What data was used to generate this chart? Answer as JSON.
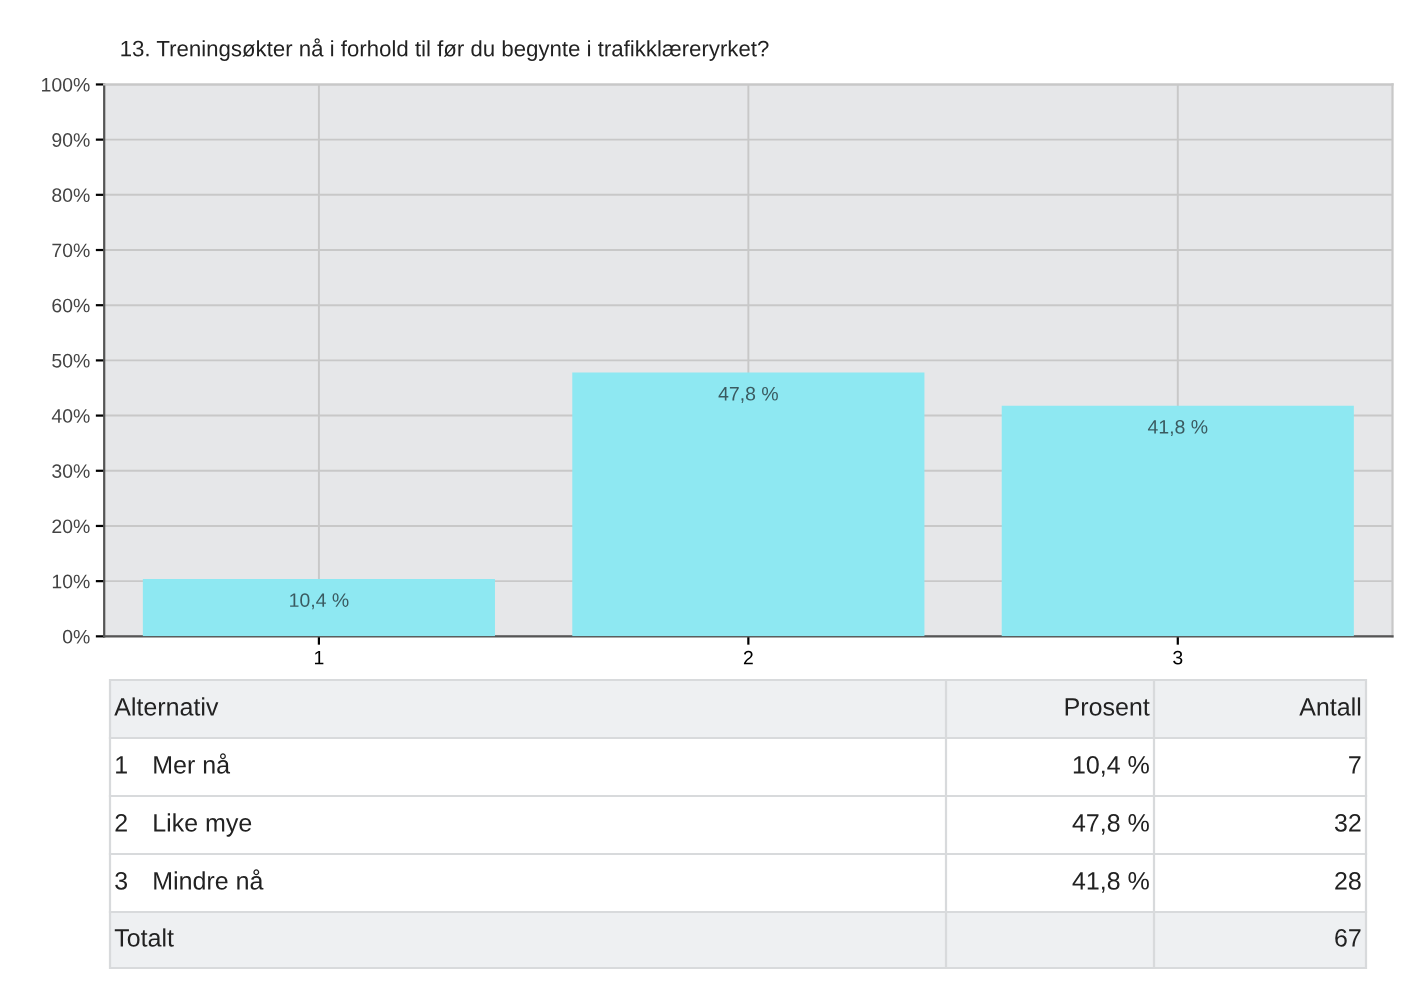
{
  "chart_data": {
    "type": "bar",
    "title": "13. Treningsøkter nå i forhold til før du begynte i trafikklæreryrket?",
    "categories": [
      "1",
      "2",
      "3"
    ],
    "values": [
      10.4,
      47.8,
      41.8
    ],
    "value_labels": [
      "10,4 %",
      "47,8 %",
      "41,8 %"
    ],
    "color": "#8ee8f2",
    "ylim": [
      0,
      100
    ],
    "yticks": [
      {
        "value": 0,
        "label": "0%"
      },
      {
        "value": 10,
        "label": "10%"
      },
      {
        "value": 20,
        "label": "20%"
      },
      {
        "value": 30,
        "label": "30%"
      },
      {
        "value": 40,
        "label": "40%"
      },
      {
        "value": 50,
        "label": "50%"
      },
      {
        "value": 60,
        "label": "60%"
      },
      {
        "value": 70,
        "label": "70%"
      },
      {
        "value": 80,
        "label": "80%"
      },
      {
        "value": 90,
        "label": "90%"
      },
      {
        "value": 100,
        "label": "100%"
      }
    ],
    "grid": true,
    "annotations": [
      "Alternativ",
      "Prosent",
      "Antall",
      "1",
      "Mer nå",
      "10,4 %",
      "7",
      "2",
      "Like mye",
      "47,8 %",
      "32",
      "3",
      "Mindre nå",
      "41,8 %",
      "28",
      "Totalt",
      "67"
    ]
  }
}
